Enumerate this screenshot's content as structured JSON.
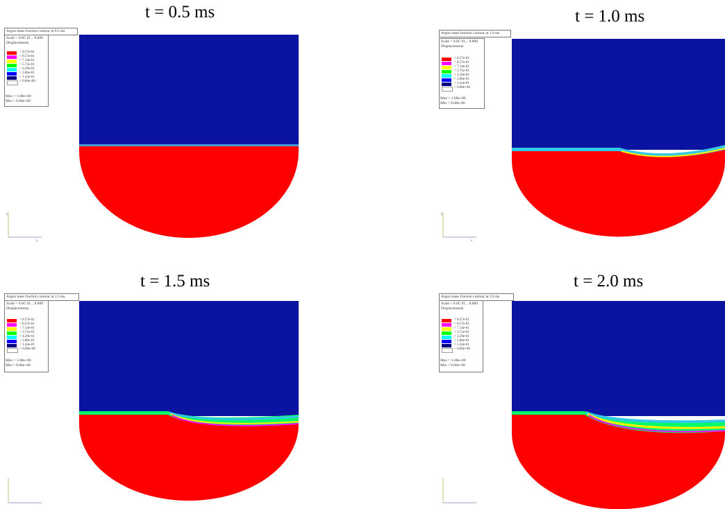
{
  "panels": [
    {
      "title": "t = 0.5 ms",
      "legend_header": "Argon mass fraction contour at 0.5 ms",
      "subheader": "Scale = 0.0C 01... 8.800",
      "subheader2": "Displacements",
      "levels": [
        "> 8.57e-01",
        "< 8.57e-01",
        "< 7.14e-01",
        "< 5.71e-01",
        "< 4.29e-01",
        "< 2.86e-01",
        "< 1.43e-01",
        "< 0.00e+00"
      ],
      "max_label": "Max = 1.00e+00",
      "min_label": "Min = 0.00e+00"
    },
    {
      "title": "t = 1.0 ms",
      "legend_header": "Argon mass fraction contour at 1.0 ms",
      "subheader": "Scale = 0.0C 01... 8.800",
      "subheader2": "Displacements",
      "levels": [
        "> 8.57e-01",
        "< 8.57e-01",
        "< 7.14e-01",
        "< 5.71e-01",
        "< 4.29e-01",
        "< 2.86e-01",
        "< 1.43e-01",
        "< 0.00e+00"
      ],
      "max_label": "Max = 1.00e+00",
      "min_label": "Min = 0.00e+00"
    },
    {
      "title": "t = 1.5 ms",
      "legend_header": "Argon mass fraction contour at 1.5 ms",
      "subheader": "Scale = 0.0C 01... 8.800",
      "subheader2": "Displacements",
      "levels": [
        "> 8.57e-01",
        "< 8.57e-01",
        "< 7.14e-01",
        "< 5.71e-01",
        "< 4.29e-01",
        "< 2.86e-01",
        "< 1.43e-01",
        "< 0.00e+00"
      ],
      "max_label": "Max = 1.00e+00",
      "min_label": "Min = 0.00e+00"
    },
    {
      "title": "t = 2.0 ms",
      "legend_header": "Argon mass fraction contour at 2.0 ms",
      "subheader": "Scale = 0.0C 01... 8.800",
      "subheader2": "Displacements",
      "levels": [
        "> 8.57e-01",
        "< 8.57e-01",
        "< 7.14e-01",
        "< 5.71e-01",
        "< 4.29e-01",
        "< 2.86e-01",
        "< 1.43e-01",
        "< 0.00e+00"
      ],
      "max_label": "Max = 1.00e+00",
      "min_label": "Min = 0.00e+00"
    }
  ],
  "colors": {
    "upper_fluid": "#0a14a0",
    "lower_fluid": "#ff0000",
    "levels": [
      "#ff0000",
      "#ff00ff",
      "#ffff00",
      "#00ff00",
      "#00ffff",
      "#0000ff",
      "#000080",
      "#ffffff"
    ]
  }
}
